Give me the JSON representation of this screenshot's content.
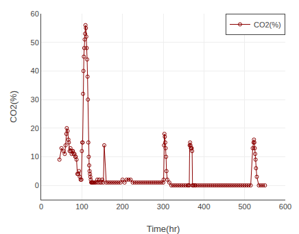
{
  "chart_data": {
    "type": "line",
    "xlabel": "Time(hr)",
    "ylabel": "CO2(%)",
    "xlim": [
      0,
      600
    ],
    "ylim": [
      -5,
      60
    ],
    "xticks": [
      0,
      100,
      200,
      300,
      400,
      500,
      600
    ],
    "yticks": [
      0,
      10,
      20,
      30,
      40,
      50,
      60
    ],
    "grid": true,
    "legend": "upper right",
    "x": [
      45,
      50,
      55,
      58,
      60,
      62,
      63,
      65,
      67,
      68,
      70,
      72,
      73,
      75,
      77,
      78,
      80,
      82,
      84,
      85,
      87,
      89,
      91,
      93,
      95,
      97,
      99,
      100,
      101,
      102,
      103,
      104,
      105,
      106,
      107,
      108,
      109,
      110,
      111,
      112,
      113,
      114,
      115,
      116,
      117,
      118,
      119,
      120,
      121,
      122,
      123,
      124,
      125,
      126,
      127,
      128,
      130,
      132,
      135,
      138,
      140,
      143,
      145,
      148,
      150,
      153,
      155,
      160,
      165,
      170,
      175,
      180,
      185,
      190,
      195,
      200,
      205,
      210,
      215,
      220,
      225,
      230,
      235,
      240,
      245,
      250,
      255,
      260,
      265,
      270,
      275,
      280,
      285,
      290,
      295,
      300,
      301,
      302,
      303,
      304,
      305,
      306,
      307,
      308,
      310,
      315,
      320,
      325,
      330,
      335,
      340,
      345,
      350,
      355,
      360,
      362,
      364,
      365,
      366,
      367,
      368,
      369,
      370,
      371,
      372,
      373,
      375,
      378,
      380,
      385,
      390,
      395,
      400,
      405,
      410,
      415,
      420,
      425,
      430,
      435,
      440,
      445,
      450,
      455,
      460,
      465,
      470,
      475,
      480,
      485,
      490,
      495,
      500,
      505,
      510,
      515,
      520,
      522,
      523,
      524,
      525,
      526,
      527,
      528,
      530,
      535,
      540,
      545,
      550
    ],
    "series": [
      {
        "name": "CO2(%)",
        "color": "#8B0000",
        "marker": "circle",
        "values": [
          9,
          13,
          12,
          11,
          14,
          18,
          20,
          19,
          16,
          15,
          12,
          13,
          12,
          11,
          12,
          12,
          11,
          11,
          10,
          10,
          9,
          4,
          4,
          5,
          3,
          2,
          2,
          12,
          15,
          15,
          32,
          40,
          45,
          48,
          51,
          53,
          56,
          55,
          52,
          48,
          44,
          38,
          30,
          15,
          10,
          7,
          5,
          4,
          3,
          2,
          1,
          1,
          1,
          1,
          1,
          1,
          1,
          1,
          1,
          2,
          1,
          2,
          1,
          1,
          2,
          1,
          14,
          1,
          1,
          1,
          1,
          1,
          1,
          1,
          1,
          2,
          1,
          2,
          2,
          2,
          1,
          1,
          1,
          1,
          1,
          1,
          1,
          1,
          1,
          1,
          1,
          1,
          1,
          1,
          1,
          1,
          2,
          14,
          18,
          17,
          15,
          13,
          10,
          5,
          2,
          1,
          0,
          0,
          0,
          0,
          0,
          0,
          0,
          0,
          0,
          0,
          0,
          14,
          15,
          14,
          13,
          13,
          13,
          12,
          0,
          0,
          0,
          0,
          0,
          0,
          0,
          0,
          0,
          0,
          0,
          0,
          0,
          0,
          0,
          0,
          0,
          0,
          0,
          0,
          0,
          0,
          0,
          0,
          0,
          0,
          0,
          0,
          0,
          0,
          0,
          0,
          13,
          15,
          16,
          15,
          13,
          11,
          9,
          6,
          3,
          0,
          0,
          0,
          0
        ]
      }
    ]
  }
}
